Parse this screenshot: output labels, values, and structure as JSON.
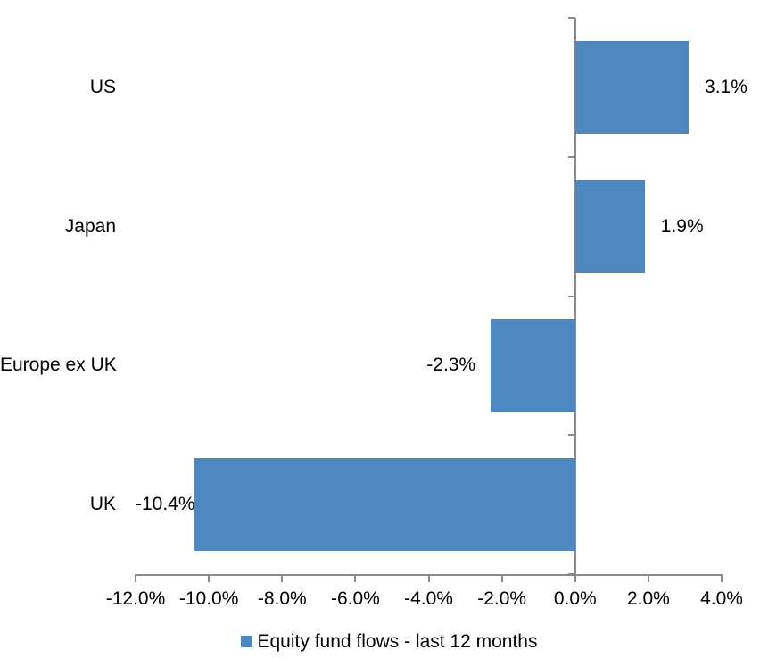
{
  "chart_data": {
    "type": "bar",
    "orientation": "horizontal",
    "title": "",
    "categories": [
      "US",
      "Japan",
      "Europe ex UK",
      "UK"
    ],
    "series": [
      {
        "name": "Equity fund flows - last 12 months",
        "values": [
          3.1,
          1.9,
          -2.3,
          -10.4
        ],
        "data_labels": [
          "3.1%",
          "1.9%",
          "-2.3%",
          "-10.4%"
        ]
      }
    ],
    "xlabel": "",
    "ylabel": "",
    "xlim": [
      -12,
      4
    ],
    "x_tick_step": 2,
    "x_tick_labels": [
      "-12.0%",
      "-10.0%",
      "-8.0%",
      "-6.0%",
      "-4.0%",
      "-2.0%",
      "0.0%",
      "2.0%",
      "4.0%"
    ],
    "grid": false,
    "legend_position": "bottom",
    "colors": {
      "bar": "#4E86BE",
      "axis": "#8A8A8A",
      "text": "#000000",
      "background": "#FFFFFF"
    }
  },
  "legend": {
    "label": "Equity fund flows - last 12 months"
  }
}
